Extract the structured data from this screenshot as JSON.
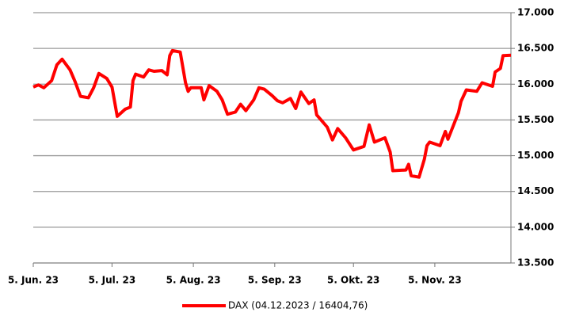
{
  "chart_data": {
    "type": "line",
    "x": [
      "2023-06-05",
      "2023-06-07",
      "2023-06-09",
      "2023-06-12",
      "2023-06-14",
      "2023-06-16",
      "2023-06-19",
      "2023-06-21",
      "2023-06-23",
      "2023-06-26",
      "2023-06-28",
      "2023-06-30",
      "2023-07-03",
      "2023-07-05",
      "2023-07-07",
      "2023-07-10",
      "2023-07-12",
      "2023-07-13",
      "2023-07-14",
      "2023-07-17",
      "2023-07-19",
      "2023-07-21",
      "2023-07-24",
      "2023-07-26",
      "2023-07-27",
      "2023-07-28",
      "2023-07-31",
      "2023-08-02",
      "2023-08-03",
      "2023-08-04",
      "2023-08-08",
      "2023-08-09",
      "2023-08-11",
      "2023-08-14",
      "2023-08-16",
      "2023-08-18",
      "2023-08-21",
      "2023-08-23",
      "2023-08-25",
      "2023-08-28",
      "2023-08-30",
      "2023-09-01",
      "2023-09-04",
      "2023-09-06",
      "2023-09-08",
      "2023-09-11",
      "2023-09-13",
      "2023-09-15",
      "2023-09-18",
      "2023-09-20",
      "2023-09-21",
      "2023-09-25",
      "2023-09-27",
      "2023-09-29",
      "2023-10-02",
      "2023-10-05",
      "2023-10-09",
      "2023-10-11",
      "2023-10-13",
      "2023-10-17",
      "2023-10-19",
      "2023-10-20",
      "2023-10-25",
      "2023-10-26",
      "2023-10-27",
      "2023-10-30",
      "2023-11-01",
      "2023-11-02",
      "2023-11-03",
      "2023-11-07",
      "2023-11-09",
      "2023-11-10",
      "2023-11-14",
      "2023-11-15",
      "2023-11-17",
      "2023-11-21",
      "2023-11-23",
      "2023-11-27",
      "2023-11-28",
      "2023-11-30",
      "2023-12-01",
      "2023-12-04"
    ],
    "series": [
      {
        "name": "DAX (04.12.2023 / 16404,76)",
        "color": "#ff0000",
        "values": [
          15960,
          15990,
          15950,
          16050,
          16270,
          16350,
          16200,
          16030,
          15830,
          15810,
          15950,
          16150,
          16080,
          15960,
          15550,
          15650,
          15680,
          16050,
          16140,
          16100,
          16200,
          16180,
          16190,
          16130,
          16400,
          16470,
          16450,
          16020,
          15900,
          15950,
          15950,
          15780,
          15980,
          15900,
          15780,
          15580,
          15610,
          15720,
          15630,
          15780,
          15950,
          15930,
          15840,
          15770,
          15740,
          15800,
          15660,
          15890,
          15730,
          15780,
          15570,
          15400,
          15220,
          15380,
          15250,
          15080,
          15130,
          15430,
          15190,
          15250,
          15050,
          14790,
          14800,
          14880,
          14720,
          14700,
          14950,
          15140,
          15190,
          15140,
          15340,
          15230,
          15600,
          15760,
          15920,
          15900,
          16020,
          15970,
          16170,
          16220,
          16400,
          16405
        ]
      }
    ],
    "xlim": [
      "2023-06-05",
      "2023-12-04"
    ],
    "xticks": [
      {
        "value": "2023-06-05",
        "label": "5. Jun. 23"
      },
      {
        "value": "2023-07-05",
        "label": "5. Jul. 23"
      },
      {
        "value": "2023-08-05",
        "label": "5. Aug. 23"
      },
      {
        "value": "2023-09-05",
        "label": "5. Sep. 23"
      },
      {
        "value": "2023-10-05",
        "label": "5. Okt. 23"
      },
      {
        "value": "2023-11-05",
        "label": "5. Nov. 23"
      }
    ],
    "ylim": [
      13500,
      17000
    ],
    "yticks": [
      {
        "value": 13500,
        "label": "13.500"
      },
      {
        "value": 14000,
        "label": "14.000"
      },
      {
        "value": 14500,
        "label": "14.500"
      },
      {
        "value": 15000,
        "label": "15.000"
      },
      {
        "value": 15500,
        "label": "15.500"
      },
      {
        "value": 16000,
        "label": "16.000"
      },
      {
        "value": 16500,
        "label": "16.500"
      },
      {
        "value": 17000,
        "label": "17.000"
      }
    ],
    "grid": true,
    "legend": "bottom"
  }
}
